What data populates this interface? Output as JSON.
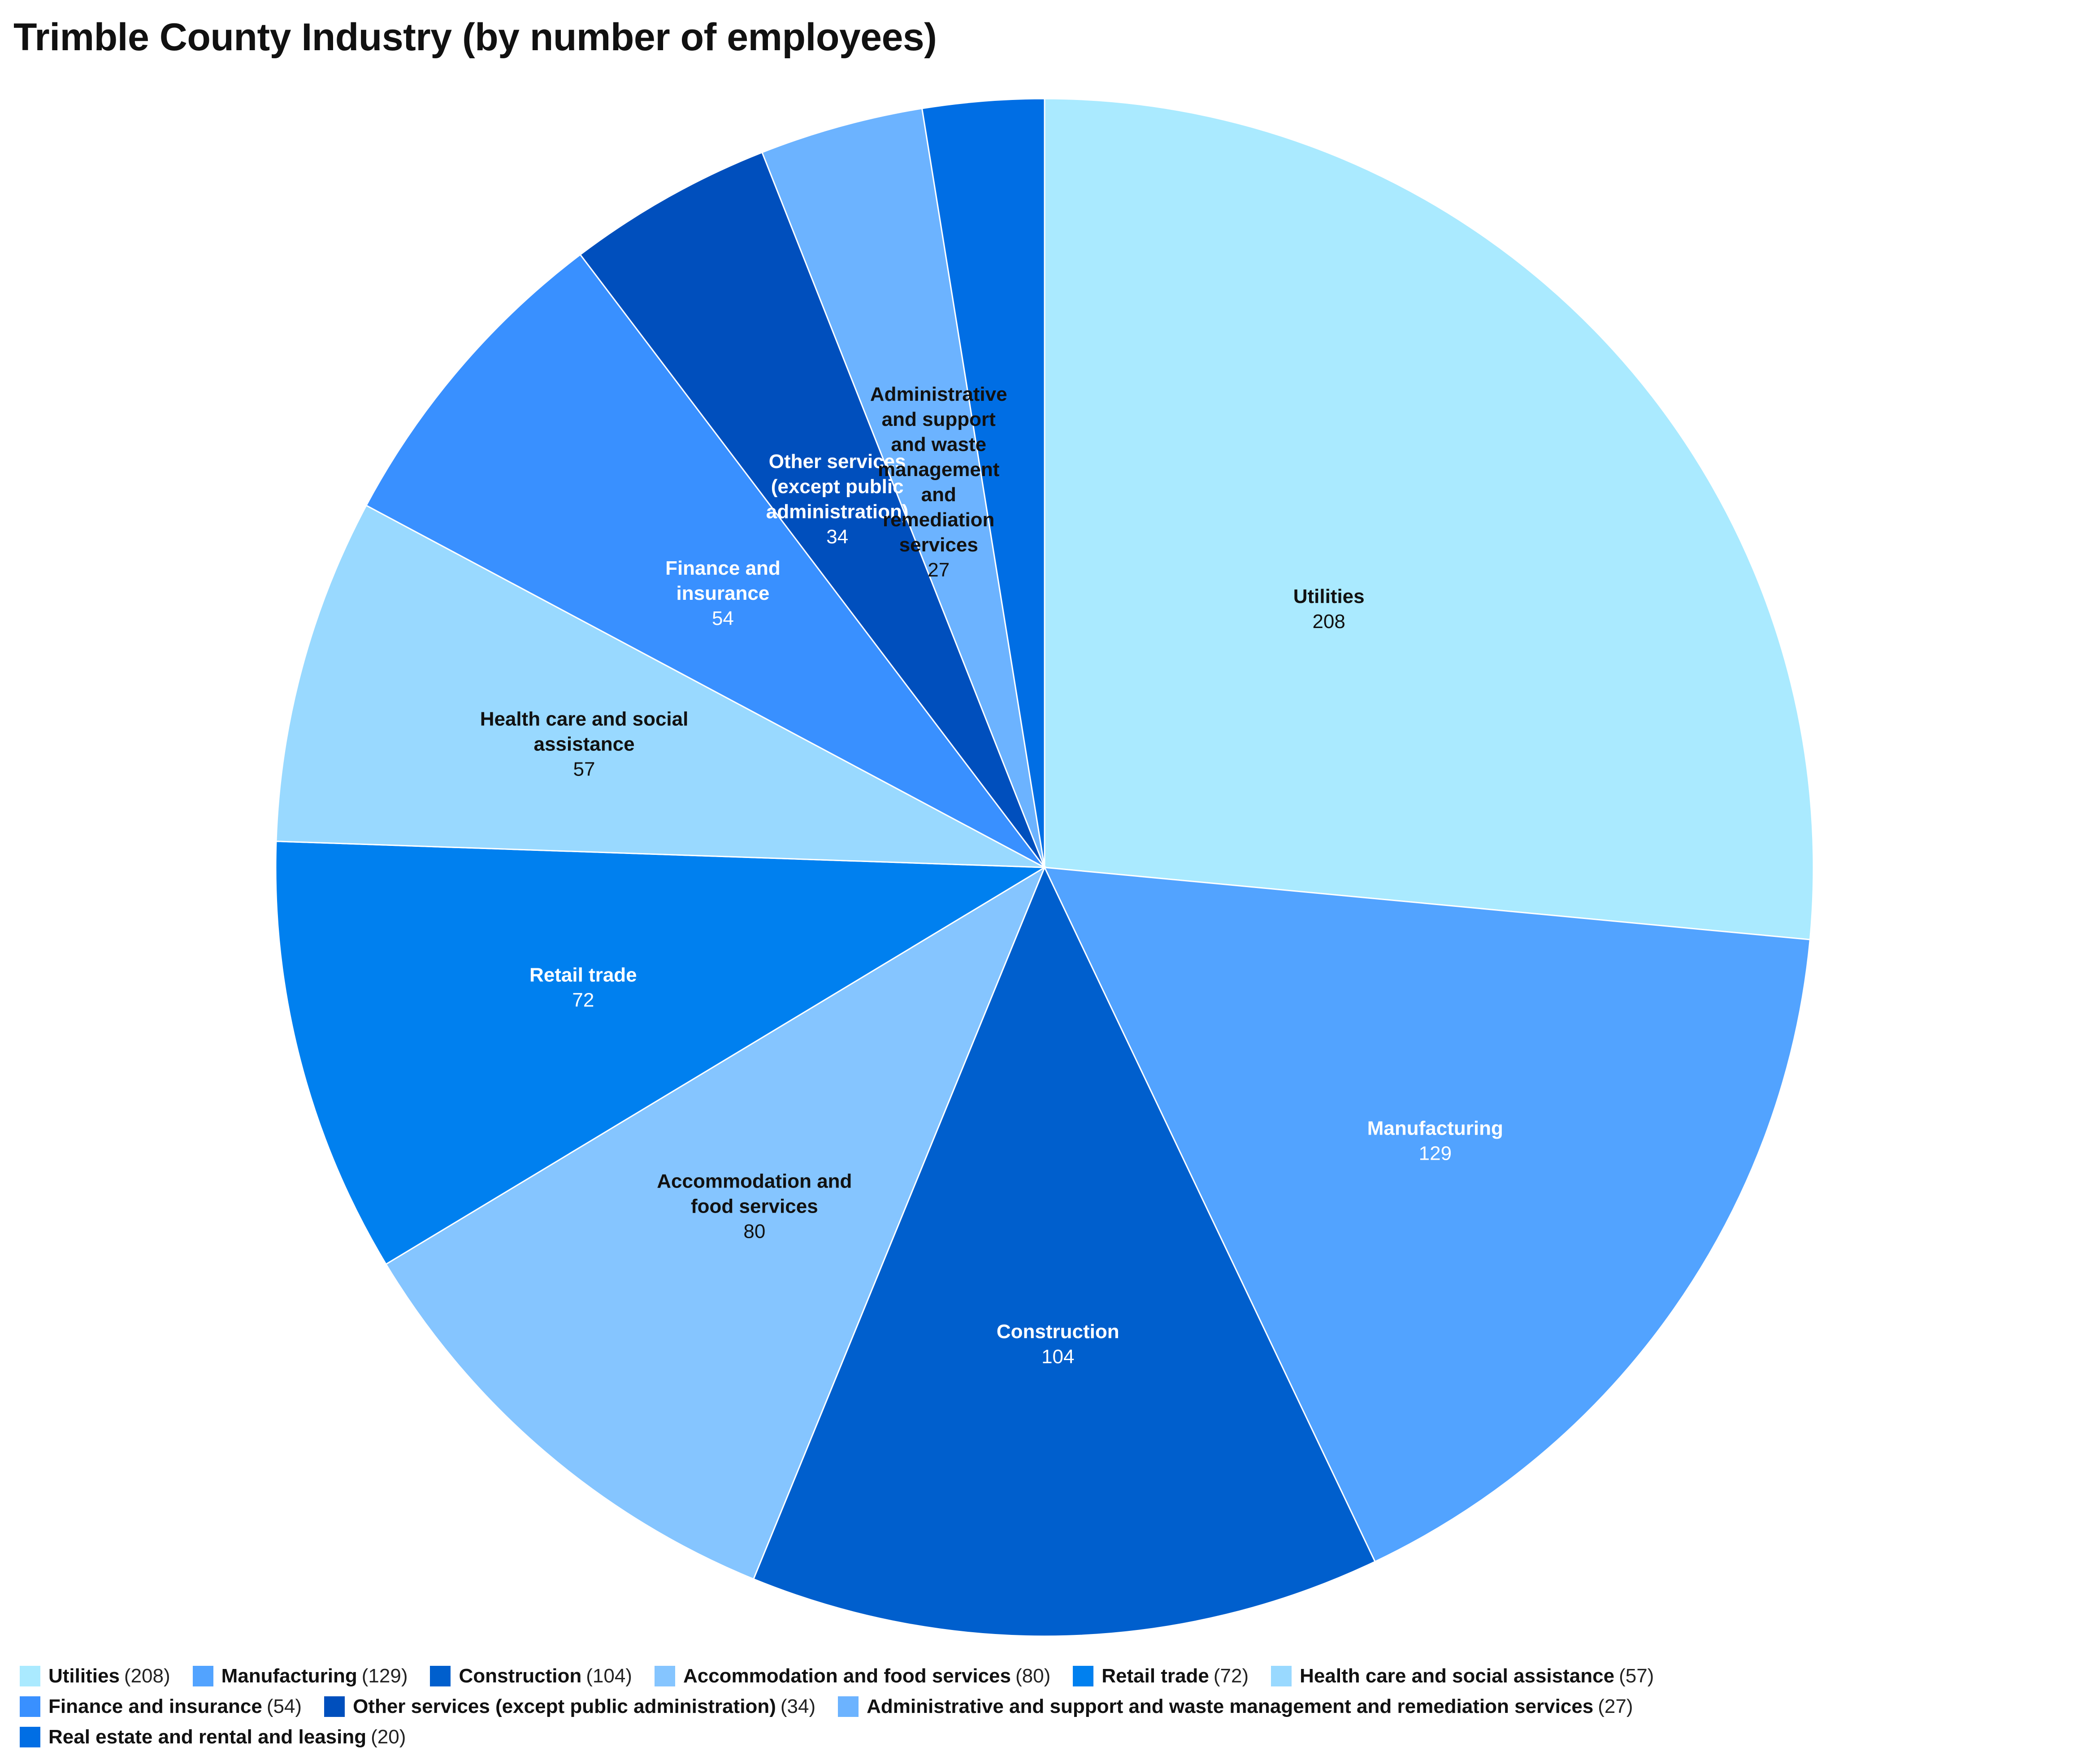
{
  "chart_data": {
    "type": "pie",
    "title": "Trimble County Industry (by number of employees)",
    "legend_position": "bottom",
    "slices": [
      {
        "name": "Utilities",
        "value": 208,
        "label_lines": [
          "Utilities"
        ],
        "color": "#aaeaff",
        "label_color": "#111111",
        "legend_text": "(208)"
      },
      {
        "name": "Manufacturing",
        "value": 129,
        "label_lines": [
          "Manufacturing"
        ],
        "color": "#52a3ff",
        "label_color": "#ffffff",
        "legend_text": "(129)"
      },
      {
        "name": "Construction",
        "value": 104,
        "label_lines": [
          "Construction"
        ],
        "color": "#005fcd",
        "label_color": "#ffffff",
        "legend_text": "(104)"
      },
      {
        "name": "Accommodation and food services",
        "value": 80,
        "label_lines": [
          "Accommodation and",
          "food services"
        ],
        "color": "#85c5ff",
        "label_color": "#111111",
        "legend_text": "(80)"
      },
      {
        "name": "Retail trade",
        "value": 72,
        "label_lines": [
          "Retail trade"
        ],
        "color": "#0080ef",
        "label_color": "#ffffff",
        "legend_text": "(72)"
      },
      {
        "name": "Health care and social assistance",
        "value": 57,
        "label_lines": [
          "Health care and social",
          "assistance"
        ],
        "color": "#99d9ff",
        "label_color": "#111111",
        "legend_text": "(57)"
      },
      {
        "name": "Finance and insurance",
        "value": 54,
        "label_lines": [
          "Finance and",
          "insurance"
        ],
        "color": "#3990ff",
        "label_color": "#ffffff",
        "legend_text": "(54)"
      },
      {
        "name": "Other services (except public administration)",
        "value": 34,
        "label_lines": [
          "Other services",
          "(except public",
          "administration)"
        ],
        "color": "#004fbd",
        "label_color": "#ffffff",
        "legend_text": "(34)"
      },
      {
        "name": "Administrative and support and waste management and remediation services",
        "value": 27,
        "label_lines": [
          "Administrative",
          "and support",
          "and waste",
          "management",
          "and",
          "remediation",
          "services"
        ],
        "color": "#6cb3ff",
        "label_color": "#111111",
        "legend_text": "(27)"
      },
      {
        "name": "Real estate and rental and leasing",
        "value": 20,
        "label_lines": [],
        "color": "#006ee4",
        "label_color": "#ffffff",
        "legend_text": "(20)"
      }
    ]
  }
}
